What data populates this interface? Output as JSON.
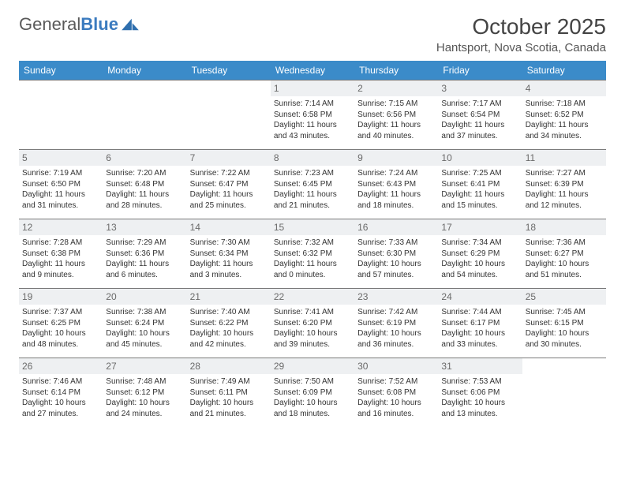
{
  "brand": {
    "name_a": "General",
    "name_b": "Blue"
  },
  "title": "October 2025",
  "location": "Hantsport, Nova Scotia, Canada",
  "colors": {
    "header_bg": "#3b8bc9",
    "header_text": "#ffffff",
    "daynum_bg": "#eef0f2",
    "daynum_text": "#6a6a6a",
    "border": "#7a7a7a",
    "body_text": "#333333",
    "brand_grey": "#5a5a5a",
    "brand_blue": "#3b7bbf"
  },
  "weekdays": [
    "Sunday",
    "Monday",
    "Tuesday",
    "Wednesday",
    "Thursday",
    "Friday",
    "Saturday"
  ],
  "weeks": [
    [
      {
        "n": "",
        "sunrise": "",
        "sunset": "",
        "daylight": ""
      },
      {
        "n": "",
        "sunrise": "",
        "sunset": "",
        "daylight": ""
      },
      {
        "n": "",
        "sunrise": "",
        "sunset": "",
        "daylight": ""
      },
      {
        "n": "1",
        "sunrise": "Sunrise: 7:14 AM",
        "sunset": "Sunset: 6:58 PM",
        "daylight": "Daylight: 11 hours and 43 minutes."
      },
      {
        "n": "2",
        "sunrise": "Sunrise: 7:15 AM",
        "sunset": "Sunset: 6:56 PM",
        "daylight": "Daylight: 11 hours and 40 minutes."
      },
      {
        "n": "3",
        "sunrise": "Sunrise: 7:17 AM",
        "sunset": "Sunset: 6:54 PM",
        "daylight": "Daylight: 11 hours and 37 minutes."
      },
      {
        "n": "4",
        "sunrise": "Sunrise: 7:18 AM",
        "sunset": "Sunset: 6:52 PM",
        "daylight": "Daylight: 11 hours and 34 minutes."
      }
    ],
    [
      {
        "n": "5",
        "sunrise": "Sunrise: 7:19 AM",
        "sunset": "Sunset: 6:50 PM",
        "daylight": "Daylight: 11 hours and 31 minutes."
      },
      {
        "n": "6",
        "sunrise": "Sunrise: 7:20 AM",
        "sunset": "Sunset: 6:48 PM",
        "daylight": "Daylight: 11 hours and 28 minutes."
      },
      {
        "n": "7",
        "sunrise": "Sunrise: 7:22 AM",
        "sunset": "Sunset: 6:47 PM",
        "daylight": "Daylight: 11 hours and 25 minutes."
      },
      {
        "n": "8",
        "sunrise": "Sunrise: 7:23 AM",
        "sunset": "Sunset: 6:45 PM",
        "daylight": "Daylight: 11 hours and 21 minutes."
      },
      {
        "n": "9",
        "sunrise": "Sunrise: 7:24 AM",
        "sunset": "Sunset: 6:43 PM",
        "daylight": "Daylight: 11 hours and 18 minutes."
      },
      {
        "n": "10",
        "sunrise": "Sunrise: 7:25 AM",
        "sunset": "Sunset: 6:41 PM",
        "daylight": "Daylight: 11 hours and 15 minutes."
      },
      {
        "n": "11",
        "sunrise": "Sunrise: 7:27 AM",
        "sunset": "Sunset: 6:39 PM",
        "daylight": "Daylight: 11 hours and 12 minutes."
      }
    ],
    [
      {
        "n": "12",
        "sunrise": "Sunrise: 7:28 AM",
        "sunset": "Sunset: 6:38 PM",
        "daylight": "Daylight: 11 hours and 9 minutes."
      },
      {
        "n": "13",
        "sunrise": "Sunrise: 7:29 AM",
        "sunset": "Sunset: 6:36 PM",
        "daylight": "Daylight: 11 hours and 6 minutes."
      },
      {
        "n": "14",
        "sunrise": "Sunrise: 7:30 AM",
        "sunset": "Sunset: 6:34 PM",
        "daylight": "Daylight: 11 hours and 3 minutes."
      },
      {
        "n": "15",
        "sunrise": "Sunrise: 7:32 AM",
        "sunset": "Sunset: 6:32 PM",
        "daylight": "Daylight: 11 hours and 0 minutes."
      },
      {
        "n": "16",
        "sunrise": "Sunrise: 7:33 AM",
        "sunset": "Sunset: 6:30 PM",
        "daylight": "Daylight: 10 hours and 57 minutes."
      },
      {
        "n": "17",
        "sunrise": "Sunrise: 7:34 AM",
        "sunset": "Sunset: 6:29 PM",
        "daylight": "Daylight: 10 hours and 54 minutes."
      },
      {
        "n": "18",
        "sunrise": "Sunrise: 7:36 AM",
        "sunset": "Sunset: 6:27 PM",
        "daylight": "Daylight: 10 hours and 51 minutes."
      }
    ],
    [
      {
        "n": "19",
        "sunrise": "Sunrise: 7:37 AM",
        "sunset": "Sunset: 6:25 PM",
        "daylight": "Daylight: 10 hours and 48 minutes."
      },
      {
        "n": "20",
        "sunrise": "Sunrise: 7:38 AM",
        "sunset": "Sunset: 6:24 PM",
        "daylight": "Daylight: 10 hours and 45 minutes."
      },
      {
        "n": "21",
        "sunrise": "Sunrise: 7:40 AM",
        "sunset": "Sunset: 6:22 PM",
        "daylight": "Daylight: 10 hours and 42 minutes."
      },
      {
        "n": "22",
        "sunrise": "Sunrise: 7:41 AM",
        "sunset": "Sunset: 6:20 PM",
        "daylight": "Daylight: 10 hours and 39 minutes."
      },
      {
        "n": "23",
        "sunrise": "Sunrise: 7:42 AM",
        "sunset": "Sunset: 6:19 PM",
        "daylight": "Daylight: 10 hours and 36 minutes."
      },
      {
        "n": "24",
        "sunrise": "Sunrise: 7:44 AM",
        "sunset": "Sunset: 6:17 PM",
        "daylight": "Daylight: 10 hours and 33 minutes."
      },
      {
        "n": "25",
        "sunrise": "Sunrise: 7:45 AM",
        "sunset": "Sunset: 6:15 PM",
        "daylight": "Daylight: 10 hours and 30 minutes."
      }
    ],
    [
      {
        "n": "26",
        "sunrise": "Sunrise: 7:46 AM",
        "sunset": "Sunset: 6:14 PM",
        "daylight": "Daylight: 10 hours and 27 minutes."
      },
      {
        "n": "27",
        "sunrise": "Sunrise: 7:48 AM",
        "sunset": "Sunset: 6:12 PM",
        "daylight": "Daylight: 10 hours and 24 minutes."
      },
      {
        "n": "28",
        "sunrise": "Sunrise: 7:49 AM",
        "sunset": "Sunset: 6:11 PM",
        "daylight": "Daylight: 10 hours and 21 minutes."
      },
      {
        "n": "29",
        "sunrise": "Sunrise: 7:50 AM",
        "sunset": "Sunset: 6:09 PM",
        "daylight": "Daylight: 10 hours and 18 minutes."
      },
      {
        "n": "30",
        "sunrise": "Sunrise: 7:52 AM",
        "sunset": "Sunset: 6:08 PM",
        "daylight": "Daylight: 10 hours and 16 minutes."
      },
      {
        "n": "31",
        "sunrise": "Sunrise: 7:53 AM",
        "sunset": "Sunset: 6:06 PM",
        "daylight": "Daylight: 10 hours and 13 minutes."
      },
      {
        "n": "",
        "sunrise": "",
        "sunset": "",
        "daylight": ""
      }
    ]
  ]
}
